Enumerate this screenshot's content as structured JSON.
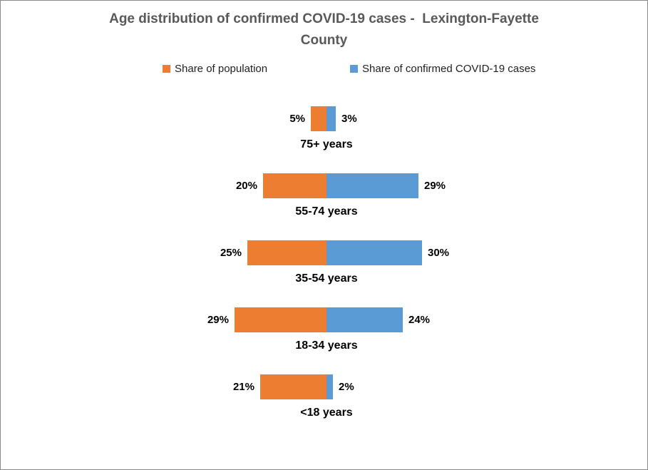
{
  "window": {
    "background": "#ffffff",
    "border_color": "#8a8a8a"
  },
  "title": {
    "line1": "Age distribution of confirmed COVID-19 cases -  Lexington-Fayette",
    "line2": "County",
    "color": "#595959"
  },
  "legend": {
    "items": [
      {
        "label": "Share of population",
        "color": "#ED7D31",
        "icon": "square-swatch-icon"
      },
      {
        "label": "Share of confirmed COVID-19 cases",
        "color": "#5B9BD5",
        "icon": "square-swatch-icon"
      }
    ]
  },
  "chart_data": {
    "type": "bar",
    "subtype": "diverging-horizontal-tornado",
    "title": "Age distribution of confirmed COVID-19 cases -  Lexington-Fayette County",
    "categories": [
      "75+ years",
      "55-74 years",
      "35-54 years",
      "18-34 years",
      "<18 years"
    ],
    "series": [
      {
        "name": "Share of population",
        "color": "#ED7D31",
        "side": "left",
        "values": [
          5,
          20,
          25,
          29,
          21
        ],
        "labels": [
          "5%",
          "20%",
          "25%",
          "29%",
          "21%"
        ]
      },
      {
        "name": "Share of confirmed COVID-19 cases",
        "color": "#5B9BD5",
        "side": "right",
        "values": [
          3,
          29,
          30,
          24,
          2
        ],
        "labels": [
          "3%",
          "29%",
          "30%",
          "24%",
          "2%"
        ]
      }
    ],
    "value_unit": "%",
    "axis": "hidden",
    "grid": false,
    "legend_position": "top",
    "value_labels_shown": true
  }
}
